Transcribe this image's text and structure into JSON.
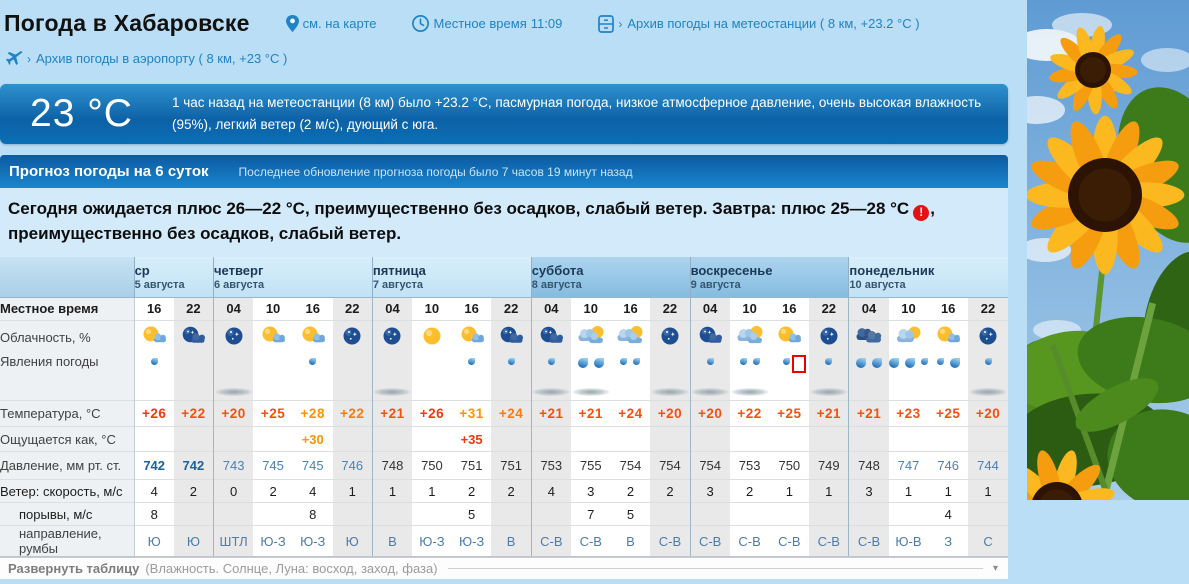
{
  "header": {
    "title": "Погода в Хабаровске",
    "map_link": "см. на карте",
    "time_label": "Местное время",
    "time_value": "11:09",
    "archive_station": "Архив погоды на метеостанции ( 8 км, +23.2 °C )",
    "archive_airport": "Архив погоды в аэропорту ( 8 км, +23 °C )"
  },
  "current": {
    "temp": "23 °C",
    "description": "1 час назад на метеостанции (8 км) было +23.2 °C, пасмурная погода, низкое атмосферное давление, очень высокая влажность (95%), легкий ветер (2 м/с), дующий с юга."
  },
  "forecast_bar": {
    "title": "Прогноз погоды на 6 суток",
    "updated": "Последнее обновление прогноза погоды было 7 часов 19 минут назад"
  },
  "summary": {
    "line1": "Сегодня ожидается плюс 26—22 °C, преимущественно без осадков, слабый ветер. Завтра: плюс 25—28 °C",
    "alert_glyph": "!",
    "line1_tail": ",",
    "line2": "преимущественно без осадков, слабый ветер."
  },
  "colors": {
    "deep": "#ef3a0d",
    "hot": "#f45110",
    "mid": "#fb7b0d",
    "orange": "#ff9302",
    "red": "#f0380b",
    "press_bb": "#1d5f9f",
    "press_bl": "#4a82b4",
    "press_dk": "#333333",
    "link": "#1f83c5",
    "alert": "#e31212"
  },
  "table": {
    "labels": {
      "time": "Местное время",
      "cloud": "Облачность, %",
      "phen": "Явления погоды",
      "temp": "Температура, °C",
      "feels": "Ощущается как, °C",
      "pressure": "Давление, мм рт. ст.",
      "wind": "Ветер: скорость, м/с",
      "gusts": "порывы, м/с",
      "dir": "направление, румбы"
    },
    "days": [
      {
        "name": "ср",
        "date": "5 августа",
        "span": 2,
        "weekend": false
      },
      {
        "name": "четверг",
        "date": "6 августа",
        "span": 4,
        "weekend": false
      },
      {
        "name": "пятница",
        "date": "7 августа",
        "span": 4,
        "weekend": false
      },
      {
        "name": "суббота",
        "date": "8 августа",
        "span": 4,
        "weekend": true
      },
      {
        "name": "воскресенье",
        "date": "9 августа",
        "span": 4,
        "weekend": true
      },
      {
        "name": "понедельник",
        "date": "10 августа",
        "span": 4,
        "weekend": false
      }
    ],
    "cols": [
      {
        "h": "16",
        "cloud": "sun-cloud",
        "phen": {
          "d": [
            "s"
          ]
        },
        "t": [
          "+26",
          "deep"
        ],
        "feels": "",
        "p": [
          "742",
          "bb"
        ],
        "ws": "4",
        "wg": "8",
        "wd": "Ю"
      },
      {
        "h": "22",
        "cloud": "night-cloud",
        "phen": {},
        "t": [
          "+22",
          "hot"
        ],
        "feels": "",
        "p": [
          "742",
          "bb"
        ],
        "ws": "2",
        "wg": "",
        "wd": "Ю"
      },
      {
        "h": "04",
        "cloud": "night",
        "phen": {
          "fog": true
        },
        "t": [
          "+20",
          "hot"
        ],
        "feels": "",
        "p": [
          "743",
          "bl"
        ],
        "ws": "0",
        "wg": "",
        "wd": "ШТЛ"
      },
      {
        "h": "10",
        "cloud": "sun-cloud",
        "phen": {},
        "t": [
          "+25",
          "hot"
        ],
        "feels": "",
        "p": [
          "745",
          "bl"
        ],
        "ws": "2",
        "wg": "",
        "wd": "Ю-З"
      },
      {
        "h": "16",
        "cloud": "sun-cloud",
        "phen": {
          "d": [
            "s"
          ]
        },
        "t": [
          "+28",
          "orange"
        ],
        "feels": [
          "+30",
          "orange"
        ],
        "p": [
          "745",
          "bl"
        ],
        "ws": "4",
        "wg": "8",
        "wd": "Ю-З"
      },
      {
        "h": "22",
        "cloud": "night",
        "phen": {},
        "t": [
          "+22",
          "mid"
        ],
        "feels": "",
        "p": [
          "746",
          "bl"
        ],
        "ws": "1",
        "wg": "",
        "wd": "Ю"
      },
      {
        "h": "04",
        "cloud": "night",
        "phen": {
          "fog": true
        },
        "t": [
          "+21",
          "hot"
        ],
        "feels": "",
        "p": [
          "748",
          "dk"
        ],
        "ws": "1",
        "wg": "",
        "wd": "В"
      },
      {
        "h": "10",
        "cloud": "sun",
        "phen": {},
        "t": [
          "+26",
          "deep"
        ],
        "feels": "",
        "p": [
          "750",
          "dk"
        ],
        "ws": "1",
        "wg": "",
        "wd": "Ю-З"
      },
      {
        "h": "16",
        "cloud": "sun-cloud",
        "phen": {
          "d": [
            "s"
          ]
        },
        "t": [
          "+31",
          "orange"
        ],
        "feels": [
          "+35",
          "red"
        ],
        "p": [
          "751",
          "dk"
        ],
        "ws": "2",
        "wg": "5",
        "wd": "Ю-З"
      },
      {
        "h": "22",
        "cloud": "night-cloud",
        "phen": {
          "d": [
            "s"
          ]
        },
        "t": [
          "+24",
          "mid"
        ],
        "feels": "",
        "p": [
          "751",
          "dk"
        ],
        "ws": "2",
        "wg": "",
        "wd": "В"
      },
      {
        "h": "04",
        "cloud": "night-cloud",
        "phen": {
          "d": [
            "s"
          ],
          "fog": true
        },
        "t": [
          "+21",
          "hot"
        ],
        "feels": "",
        "p": [
          "753",
          "dk"
        ],
        "ws": "4",
        "wg": "",
        "wd": "С-В"
      },
      {
        "h": "10",
        "cloud": "clouds-sun",
        "phen": {
          "d": [
            "l",
            "l"
          ],
          "fog": true
        },
        "t": [
          "+21",
          "hot"
        ],
        "feels": "",
        "p": [
          "755",
          "dk"
        ],
        "ws": "3",
        "wg": "7",
        "wd": "С-В"
      },
      {
        "h": "16",
        "cloud": "clouds-sun",
        "phen": {
          "d": [
            "s",
            "s"
          ]
        },
        "t": [
          "+24",
          "hot"
        ],
        "feels": "",
        "p": [
          "754",
          "dk"
        ],
        "ws": "2",
        "wg": "5",
        "wd": "В"
      },
      {
        "h": "22",
        "cloud": "night",
        "phen": {
          "fog": true
        },
        "t": [
          "+20",
          "hot"
        ],
        "feels": "",
        "p": [
          "754",
          "dk"
        ],
        "ws": "2",
        "wg": "",
        "wd": "С-В"
      },
      {
        "h": "04",
        "cloud": "night-cloud",
        "phen": {
          "d": [
            "s"
          ],
          "fog": true
        },
        "t": [
          "+20",
          "hot"
        ],
        "feels": "",
        "p": [
          "754",
          "dk"
        ],
        "ws": "3",
        "wg": "",
        "wd": "С-В"
      },
      {
        "h": "10",
        "cloud": "clouds-sun",
        "phen": {
          "d": [
            "s",
            "s"
          ],
          "fog": true
        },
        "t": [
          "+22",
          "hot"
        ],
        "feels": "",
        "p": [
          "753",
          "dk"
        ],
        "ws": "2",
        "wg": "",
        "wd": "С-В"
      },
      {
        "h": "16",
        "cloud": "sun-cloud",
        "phen": {
          "d": [
            "s",
            "l"
          ],
          "hl": 1
        },
        "t": [
          "+25",
          "hot"
        ],
        "feels": "",
        "p": [
          "750",
          "dk"
        ],
        "ws": "1",
        "wg": "",
        "wd": "С-В"
      },
      {
        "h": "22",
        "cloud": "night",
        "phen": {
          "d": [
            "s"
          ],
          "fog": true
        },
        "t": [
          "+21",
          "hot"
        ],
        "feels": "",
        "p": [
          "749",
          "dk"
        ],
        "ws": "1",
        "wg": "",
        "wd": "С-В"
      },
      {
        "h": "04",
        "cloud": "clouds-dark",
        "phen": {
          "d": [
            "l",
            "l"
          ]
        },
        "t": [
          "+21",
          "hot"
        ],
        "feels": "",
        "p": [
          "748",
          "dk"
        ],
        "ws": "3",
        "wg": "",
        "wd": "С-В"
      },
      {
        "h": "10",
        "cloud": "cloud-sun",
        "phen": {
          "d": [
            "l",
            "l",
            "s"
          ]
        },
        "t": [
          "+23",
          "hot"
        ],
        "feels": "",
        "p": [
          "747",
          "bl"
        ],
        "ws": "1",
        "wg": "",
        "wd": "Ю-В"
      },
      {
        "h": "16",
        "cloud": "sun-cloud",
        "phen": {
          "d": [
            "s",
            "l"
          ]
        },
        "t": [
          "+25",
          "hot"
        ],
        "feels": "",
        "p": [
          "746",
          "bl"
        ],
        "ws": "1",
        "wg": "4",
        "wd": "З"
      },
      {
        "h": "22",
        "cloud": "night",
        "phen": {
          "d": [
            "s"
          ],
          "fog": true
        },
        "t": [
          "+20",
          "hot"
        ],
        "feels": "",
        "p": [
          "744",
          "bl"
        ],
        "ws": "1",
        "wg": "",
        "wd": "С"
      }
    ]
  },
  "expander": {
    "bold": "Развернуть таблицу",
    "note": "(Влажность. Солнце, Луна: восход, заход, фаза)",
    "arrow": "▾"
  }
}
